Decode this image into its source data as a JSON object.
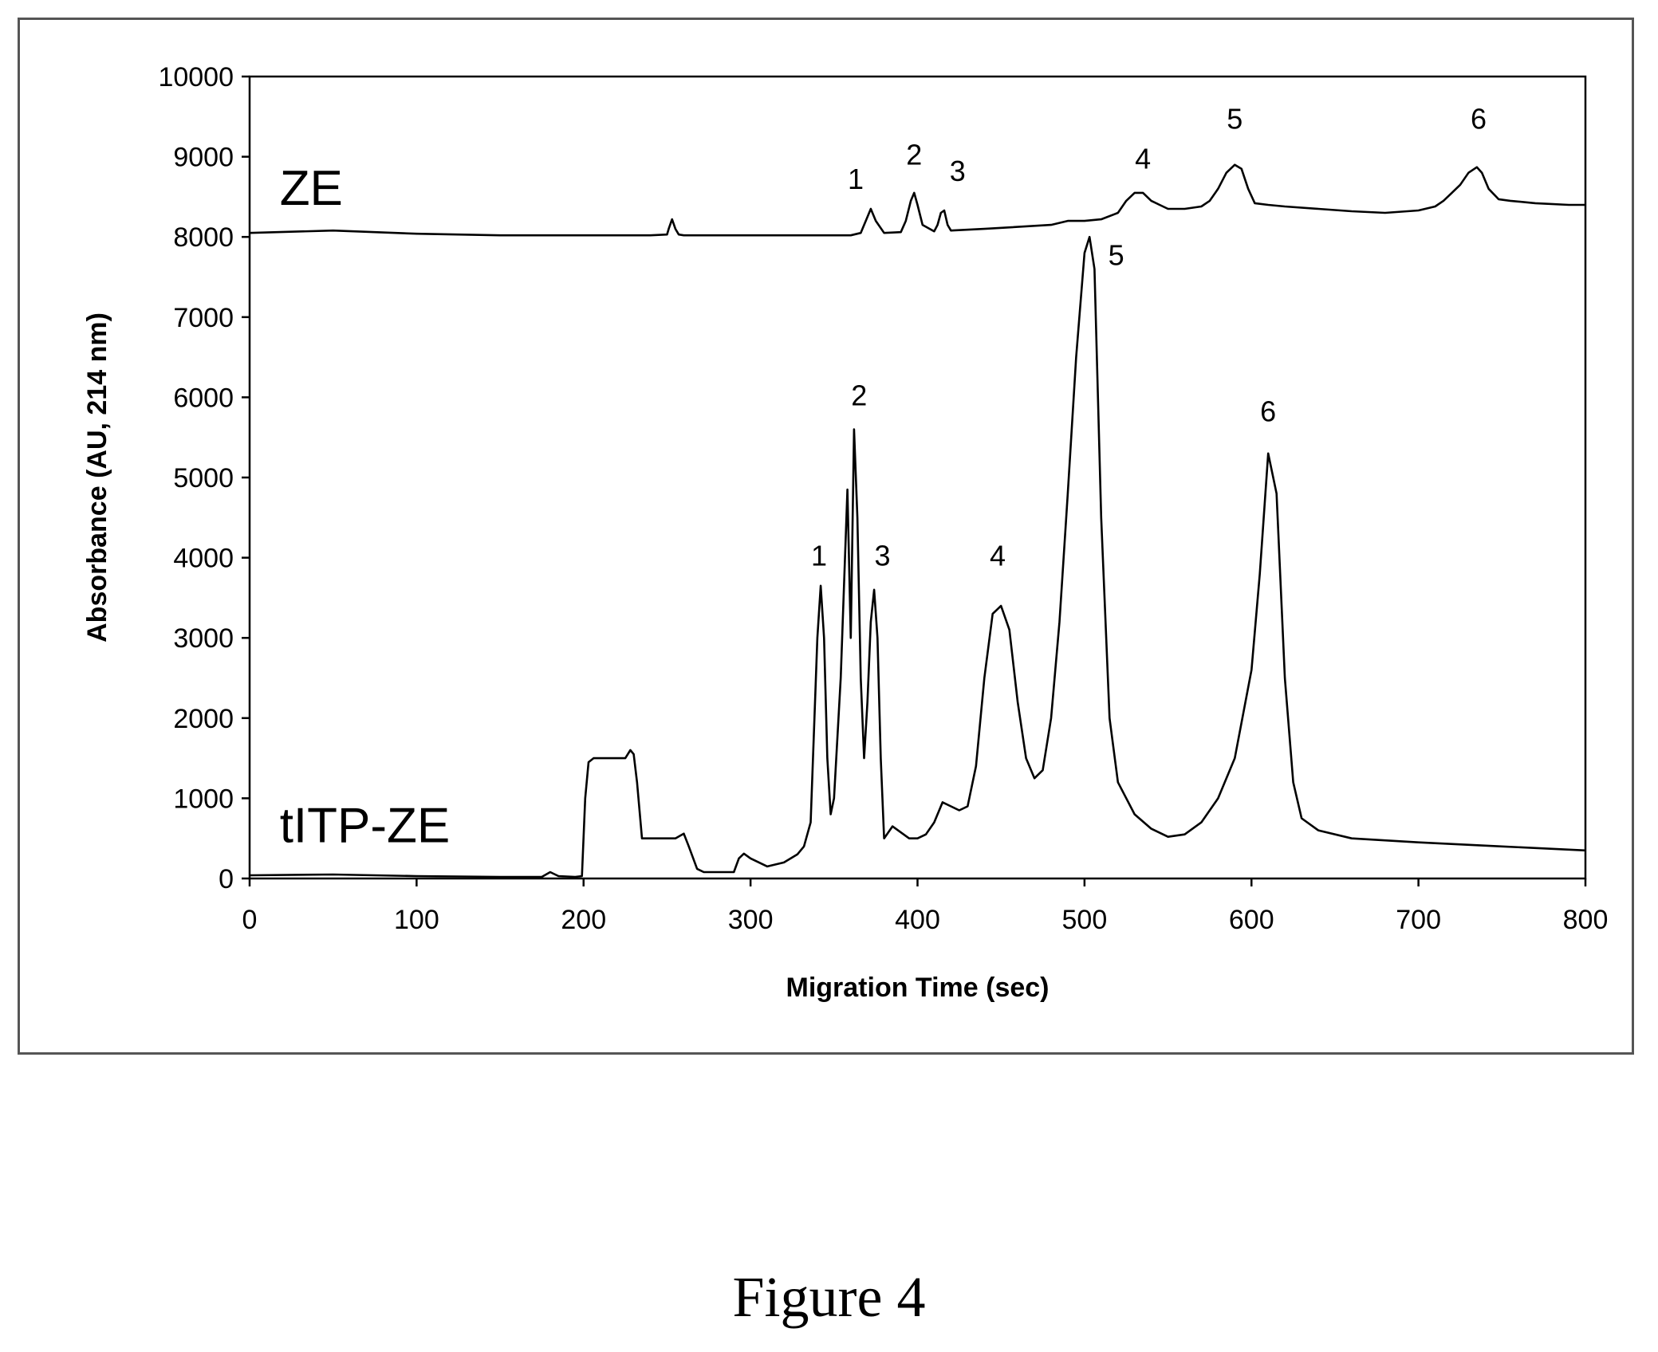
{
  "caption": "Figure 4",
  "chart_data": {
    "type": "line",
    "title": "",
    "xlabel": "Migration Time (sec)",
    "ylabel": "Absorbance (AU, 214 nm)",
    "xlim": [
      0,
      800
    ],
    "ylim": [
      0,
      10000
    ],
    "xticks": [
      0,
      100,
      200,
      300,
      400,
      500,
      600,
      700,
      800
    ],
    "yticks": [
      0,
      1000,
      2000,
      3000,
      4000,
      5000,
      6000,
      7000,
      8000,
      9000,
      10000
    ],
    "grid": false,
    "legend": "none",
    "series": [
      {
        "name": "ZE",
        "color": "#000000",
        "x": [
          0,
          50,
          100,
          150,
          200,
          240,
          250,
          251,
          253,
          255,
          257,
          260,
          300,
          340,
          360,
          366,
          370,
          372,
          375,
          380,
          390,
          393,
          396,
          398,
          400,
          403,
          410,
          412,
          414,
          416,
          418,
          420,
          440,
          480,
          490,
          500,
          510,
          520,
          525,
          530,
          535,
          540,
          545,
          550,
          560,
          570,
          575,
          580,
          585,
          590,
          594,
          598,
          602,
          610,
          620,
          640,
          660,
          680,
          700,
          710,
          715,
          720,
          725,
          730,
          735,
          738,
          742,
          748,
          755,
          770,
          790,
          800
        ],
        "y": [
          8050,
          8080,
          8040,
          8020,
          8020,
          8020,
          8030,
          8100,
          8220,
          8100,
          8030,
          8020,
          8020,
          8020,
          8020,
          8050,
          8250,
          8350,
          8200,
          8050,
          8060,
          8200,
          8450,
          8550,
          8400,
          8150,
          8070,
          8150,
          8300,
          8330,
          8150,
          8080,
          8100,
          8150,
          8200,
          8200,
          8220,
          8300,
          8450,
          8550,
          8550,
          8450,
          8400,
          8350,
          8350,
          8380,
          8450,
          8600,
          8800,
          8900,
          8850,
          8600,
          8420,
          8400,
          8380,
          8350,
          8320,
          8300,
          8330,
          8380,
          8450,
          8550,
          8650,
          8800,
          8870,
          8800,
          8600,
          8470,
          8450,
          8420,
          8400,
          8400
        ],
        "peak_labels": [
          {
            "label": "1",
            "x": 363,
            "y": 8600
          },
          {
            "label": "2",
            "x": 398,
            "y": 8900
          },
          {
            "label": "3",
            "x": 424,
            "y": 8700
          },
          {
            "label": "4",
            "x": 535,
            "y": 8850
          },
          {
            "label": "5",
            "x": 590,
            "y": 9350
          },
          {
            "label": "6",
            "x": 736,
            "y": 9350
          }
        ]
      },
      {
        "name": "tITP-ZE",
        "color": "#000000",
        "x": [
          0,
          50,
          100,
          150,
          175,
          180,
          185,
          195,
          199,
          201,
          203,
          206,
          225,
          228,
          230,
          232,
          235,
          255,
          260,
          263,
          268,
          272,
          290,
          293,
          296,
          300,
          310,
          320,
          328,
          332,
          336,
          340,
          342,
          344,
          346,
          348,
          350,
          354,
          358,
          360,
          362,
          364,
          366,
          368,
          370,
          372,
          374,
          376,
          378,
          380,
          385,
          395,
          400,
          405,
          410,
          415,
          420,
          425,
          430,
          435,
          440,
          445,
          450,
          455,
          460,
          465,
          470,
          475,
          480,
          485,
          490,
          495,
          500,
          503,
          506,
          510,
          515,
          520,
          530,
          540,
          550,
          560,
          570,
          580,
          590,
          600,
          605,
          610,
          615,
          620,
          625,
          630,
          640,
          660,
          700,
          750,
          800
        ],
        "y": [
          40,
          50,
          30,
          20,
          20,
          80,
          30,
          20,
          30,
          1000,
          1450,
          1500,
          1500,
          1600,
          1550,
          1200,
          500,
          500,
          560,
          400,
          120,
          80,
          80,
          250,
          310,
          250,
          150,
          200,
          300,
          400,
          700,
          3000,
          3650,
          3000,
          1500,
          800,
          1000,
          2500,
          4850,
          3000,
          5600,
          4500,
          2500,
          1500,
          2200,
          3200,
          3600,
          3000,
          1500,
          500,
          650,
          500,
          500,
          550,
          700,
          950,
          900,
          850,
          900,
          1400,
          2500,
          3300,
          3400,
          3100,
          2200,
          1500,
          1250,
          1350,
          2000,
          3200,
          4800,
          6500,
          7800,
          8000,
          7600,
          4500,
          2000,
          1200,
          800,
          620,
          520,
          550,
          700,
          1000,
          1500,
          2600,
          3800,
          5300,
          4800,
          2500,
          1200,
          750,
          600,
          500,
          450,
          400,
          350
        ],
        "peak_labels": [
          {
            "label": "1",
            "x": 341,
            "y": 3900
          },
          {
            "label": "2",
            "x": 365,
            "y": 5900
          },
          {
            "label": "3",
            "x": 379,
            "y": 3900
          },
          {
            "label": "4",
            "x": 448,
            "y": 3900
          },
          {
            "label": "5",
            "x": 519,
            "y": 7650
          },
          {
            "label": "6",
            "x": 610,
            "y": 5700
          }
        ]
      }
    ],
    "series_name_positions": [
      {
        "name": "ZE",
        "x": 18,
        "y": 8400
      },
      {
        "name": "tITP-ZE",
        "x": 18,
        "y": 450
      }
    ]
  }
}
